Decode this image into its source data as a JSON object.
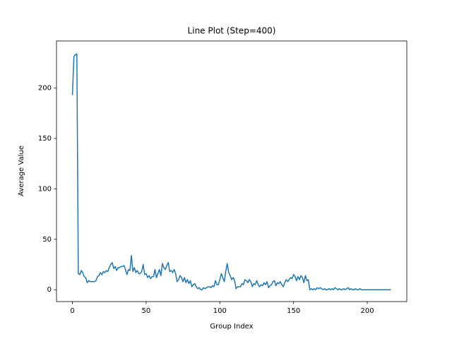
{
  "chart_data": {
    "type": "line",
    "title": "Line Plot (Step=400)",
    "x_label": "Group Index",
    "y_label": "Average Value",
    "x": [
      0,
      1,
      2,
      3,
      4,
      5,
      6,
      7,
      8,
      9,
      10,
      11,
      12,
      13,
      14,
      15,
      16,
      17,
      18,
      19,
      20,
      21,
      22,
      23,
      24,
      25,
      26,
      27,
      28,
      29,
      30,
      31,
      32,
      33,
      34,
      35,
      36,
      37,
      38,
      39,
      40,
      41,
      42,
      43,
      44,
      45,
      46,
      47,
      48,
      49,
      50,
      51,
      52,
      53,
      54,
      55,
      56,
      57,
      58,
      59,
      60,
      61,
      62,
      63,
      64,
      65,
      66,
      67,
      68,
      69,
      70,
      71,
      72,
      73,
      74,
      75,
      76,
      77,
      78,
      79,
      80,
      81,
      82,
      83,
      84,
      85,
      86,
      87,
      88,
      89,
      90,
      91,
      92,
      93,
      94,
      95,
      96,
      97,
      98,
      99,
      100,
      101,
      102,
      103,
      104,
      105,
      106,
      107,
      108,
      109,
      110,
      111,
      112,
      113,
      114,
      115,
      116,
      117,
      118,
      119,
      120,
      121,
      122,
      123,
      124,
      125,
      126,
      127,
      128,
      129,
      130,
      131,
      132,
      133,
      134,
      135,
      136,
      137,
      138,
      139,
      140,
      141,
      142,
      143,
      144,
      145,
      146,
      147,
      148,
      149,
      150,
      151,
      152,
      153,
      154,
      155,
      156,
      157,
      158,
      159,
      160,
      161,
      162,
      163,
      164,
      165,
      166,
      167,
      168,
      169,
      170,
      171,
      172,
      173,
      174,
      175,
      176,
      177,
      178,
      179,
      180,
      181,
      182,
      183,
      184,
      185,
      186,
      187,
      188,
      189,
      190,
      191,
      192,
      193,
      194,
      195,
      196,
      197,
      198,
      199,
      200,
      201,
      202,
      203,
      204,
      205,
      206,
      207,
      208,
      209,
      210,
      211,
      212,
      213,
      214,
      215,
      216
    ],
    "series": [
      {
        "color": "#1f77b4",
        "values": [
          193,
          231,
          233,
          234,
          16,
          15,
          19,
          17,
          13,
          12,
          7,
          9,
          8,
          8,
          8,
          8,
          9,
          13,
          14,
          17,
          15,
          18,
          17,
          19,
          18,
          22,
          25,
          27,
          21,
          23,
          19,
          22,
          22,
          23,
          23,
          24,
          20,
          15,
          20,
          19,
          34,
          18,
          22,
          17,
          19,
          16,
          16,
          18,
          25,
          15,
          16,
          12,
          14,
          11,
          13,
          13,
          20,
          12,
          16,
          20,
          14,
          26,
          22,
          20,
          24,
          27,
          18,
          19,
          17,
          20,
          16,
          8,
          10,
          14,
          12,
          8,
          12,
          7,
          10,
          6,
          9,
          3,
          5,
          6,
          3,
          1,
          2,
          0,
          0,
          2,
          1,
          2,
          3,
          3,
          2,
          4,
          3,
          9,
          5,
          5,
          10,
          16,
          12,
          8,
          18,
          26,
          17,
          14,
          10,
          12,
          9,
          1,
          3,
          3,
          3,
          6,
          5,
          10,
          9,
          7,
          10,
          8,
          3,
          6,
          5,
          9,
          5,
          3,
          5,
          4,
          7,
          5,
          8,
          2,
          4,
          5,
          8,
          9,
          4,
          7,
          6,
          8,
          5,
          3,
          7,
          10,
          8,
          10,
          12,
          11,
          15,
          13,
          9,
          13,
          10,
          14,
          12,
          7,
          14,
          9,
          10,
          0,
          1,
          0,
          1,
          0,
          2,
          1,
          2,
          1,
          0,
          1,
          0,
          0,
          1,
          0,
          1,
          0,
          2,
          1,
          0,
          1,
          0,
          0,
          1,
          0,
          1,
          2,
          0,
          1,
          0,
          0,
          1,
          0,
          0,
          1,
          0,
          0,
          0,
          0,
          0,
          0,
          0,
          0,
          0,
          0,
          0,
          0,
          0,
          0,
          0,
          0,
          0,
          0,
          0,
          0,
          0
        ]
      }
    ],
    "xlim": [
      -10.8,
      226.8
    ],
    "ylim": [
      -11.75,
      246.75
    ],
    "xticks": [
      0,
      50,
      100,
      150,
      200
    ],
    "yticks": [
      0,
      50,
      100,
      150,
      200
    ]
  }
}
